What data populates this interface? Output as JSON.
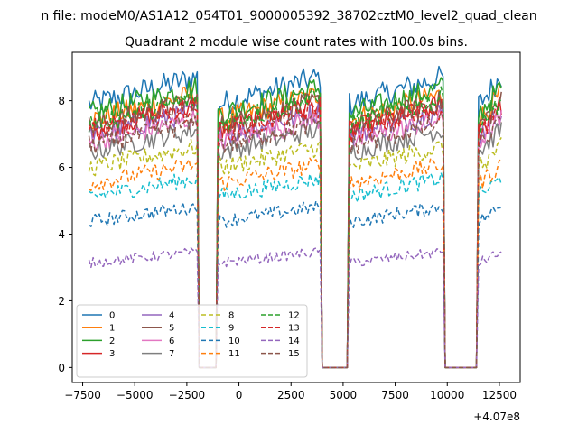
{
  "chart_data": {
    "type": "line",
    "suptitle": "n file: modeM0/AS1A12_054T01_9000005392_38702cztM0_level2_quad_clean",
    "title": "Quadrant 2 module wise count rates with 100.0s bins.",
    "xlabel": "",
    "ylabel": "",
    "x_offset_label": "+4.07e8",
    "xlim": [
      -8000,
      13500
    ],
    "ylim": [
      -0.45,
      9.45
    ],
    "x_ticks": [
      -7500,
      -5000,
      -2500,
      0,
      2500,
      5000,
      7500,
      10000,
      12500
    ],
    "x_tick_labels": [
      "−7500",
      "−5000",
      "−2500",
      "0",
      "2500",
      "5000",
      "7500",
      "10000",
      "12500"
    ],
    "y_ticks": [
      0,
      2,
      4,
      6,
      8
    ],
    "y_tick_labels": [
      "0",
      "2",
      "4",
      "6",
      "8"
    ],
    "grid": false,
    "legend_placement": "lower-left",
    "legend_columns": 4,
    "good_time_intervals": [
      [
        -7200,
        -2000
      ],
      [
        -1000,
        3900
      ],
      [
        5300,
        9800
      ],
      [
        11500,
        12600
      ]
    ],
    "gap_value": 0,
    "bin_width_s": 100,
    "series": [
      {
        "name": "0",
        "color": "#1f77b4",
        "style": "solid",
        "level": 8.3
      },
      {
        "name": "1",
        "color": "#ff7f0e",
        "style": "solid",
        "level": 7.8
      },
      {
        "name": "2",
        "color": "#2ca02c",
        "style": "solid",
        "level": 8.0
      },
      {
        "name": "3",
        "color": "#d62728",
        "style": "solid",
        "level": 7.5
      },
      {
        "name": "4",
        "color": "#9467bd",
        "style": "solid",
        "level": 7.3
      },
      {
        "name": "5",
        "color": "#8c564b",
        "style": "solid",
        "level": 7.6
      },
      {
        "name": "6",
        "color": "#e377c2",
        "style": "solid",
        "level": 7.1
      },
      {
        "name": "7",
        "color": "#7f7f7f",
        "style": "solid",
        "level": 6.8
      },
      {
        "name": "8",
        "color": "#bcbd22",
        "style": "dashed",
        "level": 6.3
      },
      {
        "name": "9",
        "color": "#17becf",
        "style": "dashed",
        "level": 5.4
      },
      {
        "name": "10",
        "color": "#1f77b4",
        "style": "dashed",
        "level": 4.6
      },
      {
        "name": "11",
        "color": "#ff7f0e",
        "style": "dashed",
        "level": 5.8
      },
      {
        "name": "12",
        "color": "#2ca02c",
        "style": "dashed",
        "level": 7.7
      },
      {
        "name": "13",
        "color": "#d62728",
        "style": "dashed",
        "level": 7.4
      },
      {
        "name": "14",
        "color": "#9467bd",
        "style": "dashed",
        "level": 3.3
      },
      {
        "name": "15",
        "color": "#8c564b",
        "style": "dashed",
        "level": 7.0
      }
    ]
  }
}
